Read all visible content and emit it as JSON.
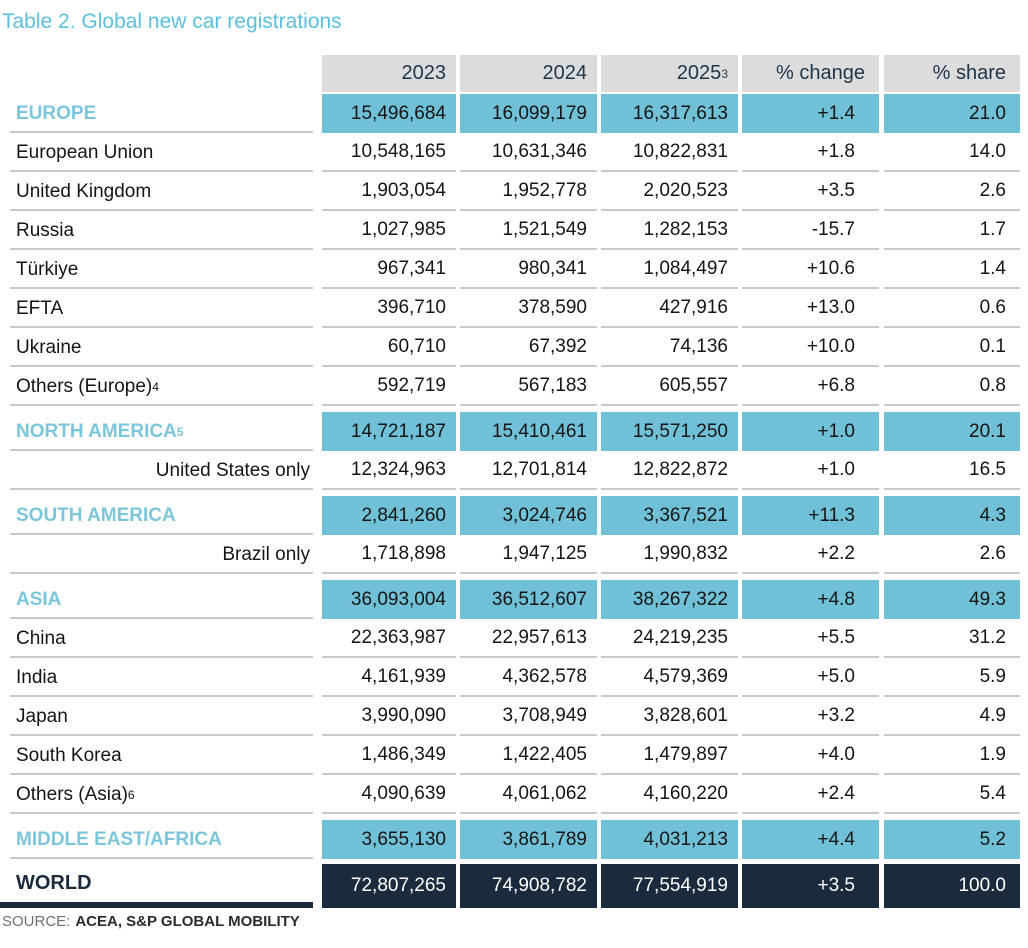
{
  "title": "Table 2. Global new car registrations",
  "colors": {
    "title_blue": "#5bc0de",
    "region_label_blue": "#7cc6db",
    "row_highlight_blue": "#70c0d7",
    "world_navy": "#1b2b3d",
    "header_gray": "#dcdcdc",
    "header_text_navy": "#1f3447",
    "border_gray": "#c9c9c9",
    "source_gray": "#707070"
  },
  "table": {
    "header": {
      "y2023": "2023",
      "y2024": "2024",
      "y2025": "2025",
      "y2025_sup": "3",
      "change": "% change",
      "share": "% share"
    },
    "rows": [
      {
        "label": "EUROPE",
        "sup": "",
        "style": "region",
        "gap_before": false,
        "values": [
          "15,496,684",
          "16,099,179",
          "16,317,613",
          "+1.4",
          "21.0"
        ]
      },
      {
        "label": "European Union",
        "sup": "",
        "style": "country",
        "gap_before": false,
        "values": [
          "10,548,165",
          "10,631,346",
          "10,822,831",
          "+1.8",
          "14.0"
        ]
      },
      {
        "label": "United Kingdom",
        "sup": "",
        "style": "country",
        "gap_before": false,
        "values": [
          "1,903,054",
          "1,952,778",
          "2,020,523",
          "+3.5",
          "2.6"
        ]
      },
      {
        "label": "Russia",
        "sup": "",
        "style": "country",
        "gap_before": false,
        "values": [
          "1,027,985",
          "1,521,549",
          "1,282,153",
          "-15.7",
          "1.7"
        ]
      },
      {
        "label": "Türkiye",
        "sup": "",
        "style": "country",
        "gap_before": false,
        "values": [
          "967,341",
          "980,341",
          "1,084,497",
          "+10.6",
          "1.4"
        ]
      },
      {
        "label": "EFTA",
        "sup": "",
        "style": "country",
        "gap_before": false,
        "values": [
          "396,710",
          "378,590",
          "427,916",
          "+13.0",
          "0.6"
        ]
      },
      {
        "label": "Ukraine",
        "sup": "",
        "style": "country",
        "gap_before": false,
        "values": [
          "60,710",
          "67,392",
          "74,136",
          "+10.0",
          "0.1"
        ]
      },
      {
        "label": "Others (Europe)",
        "sup": "4",
        "style": "country",
        "gap_before": false,
        "values": [
          "592,719",
          "567,183",
          "605,557",
          "+6.8",
          "0.8"
        ]
      },
      {
        "label": "NORTH AMERICA",
        "sup": "5",
        "style": "region",
        "gap_before": true,
        "values": [
          "14,721,187",
          "15,410,461",
          "15,571,250",
          "+1.0",
          "20.1"
        ]
      },
      {
        "label": "United States only",
        "sup": "",
        "style": "country-right",
        "gap_before": false,
        "values": [
          "12,324,963",
          "12,701,814",
          "12,822,872",
          "+1.0",
          "16.5"
        ]
      },
      {
        "label": "SOUTH AMERICA",
        "sup": "",
        "style": "region",
        "gap_before": true,
        "values": [
          "2,841,260",
          "3,024,746",
          "3,367,521",
          "+11.3",
          "4.3"
        ]
      },
      {
        "label": "Brazil only",
        "sup": "",
        "style": "country-right",
        "gap_before": false,
        "values": [
          "1,718,898",
          "1,947,125",
          "1,990,832",
          "+2.2",
          "2.6"
        ]
      },
      {
        "label": "ASIA",
        "sup": "",
        "style": "region",
        "gap_before": true,
        "values": [
          "36,093,004",
          "36,512,607",
          "38,267,322",
          "+4.8",
          "49.3"
        ]
      },
      {
        "label": "China",
        "sup": "",
        "style": "country",
        "gap_before": false,
        "values": [
          "22,363,987",
          "22,957,613",
          "24,219,235",
          "+5.5",
          "31.2"
        ]
      },
      {
        "label": "India",
        "sup": "",
        "style": "country",
        "gap_before": false,
        "values": [
          "4,161,939",
          "4,362,578",
          "4,579,369",
          "+5.0",
          "5.9"
        ]
      },
      {
        "label": "Japan",
        "sup": "",
        "style": "country",
        "gap_before": false,
        "values": [
          "3,990,090",
          "3,708,949",
          "3,828,601",
          "+3.2",
          "4.9"
        ]
      },
      {
        "label": "South Korea",
        "sup": "",
        "style": "country",
        "gap_before": false,
        "values": [
          "1,486,349",
          "1,422,405",
          "1,479,897",
          "+4.0",
          "1.9"
        ]
      },
      {
        "label": "Others (Asia)",
        "sup": "6",
        "style": "country",
        "gap_before": false,
        "values": [
          "4,090,639",
          "4,061,062",
          "4,160,220",
          "+2.4",
          "5.4"
        ]
      },
      {
        "label": "MIDDLE EAST/AFRICA",
        "sup": "",
        "style": "region",
        "gap_before": true,
        "values": [
          "3,655,130",
          "3,861,789",
          "4,031,213",
          "+4.4",
          "5.2"
        ]
      },
      {
        "label": "WORLD",
        "sup": "",
        "style": "world",
        "gap_before": true,
        "values": [
          "72,807,265",
          "74,908,782",
          "77,554,919",
          "+3.5",
          "100.0"
        ]
      }
    ]
  },
  "source": {
    "prefix": "SOURCE:",
    "text": "ACEA, S&P GLOBAL MOBILITY"
  }
}
